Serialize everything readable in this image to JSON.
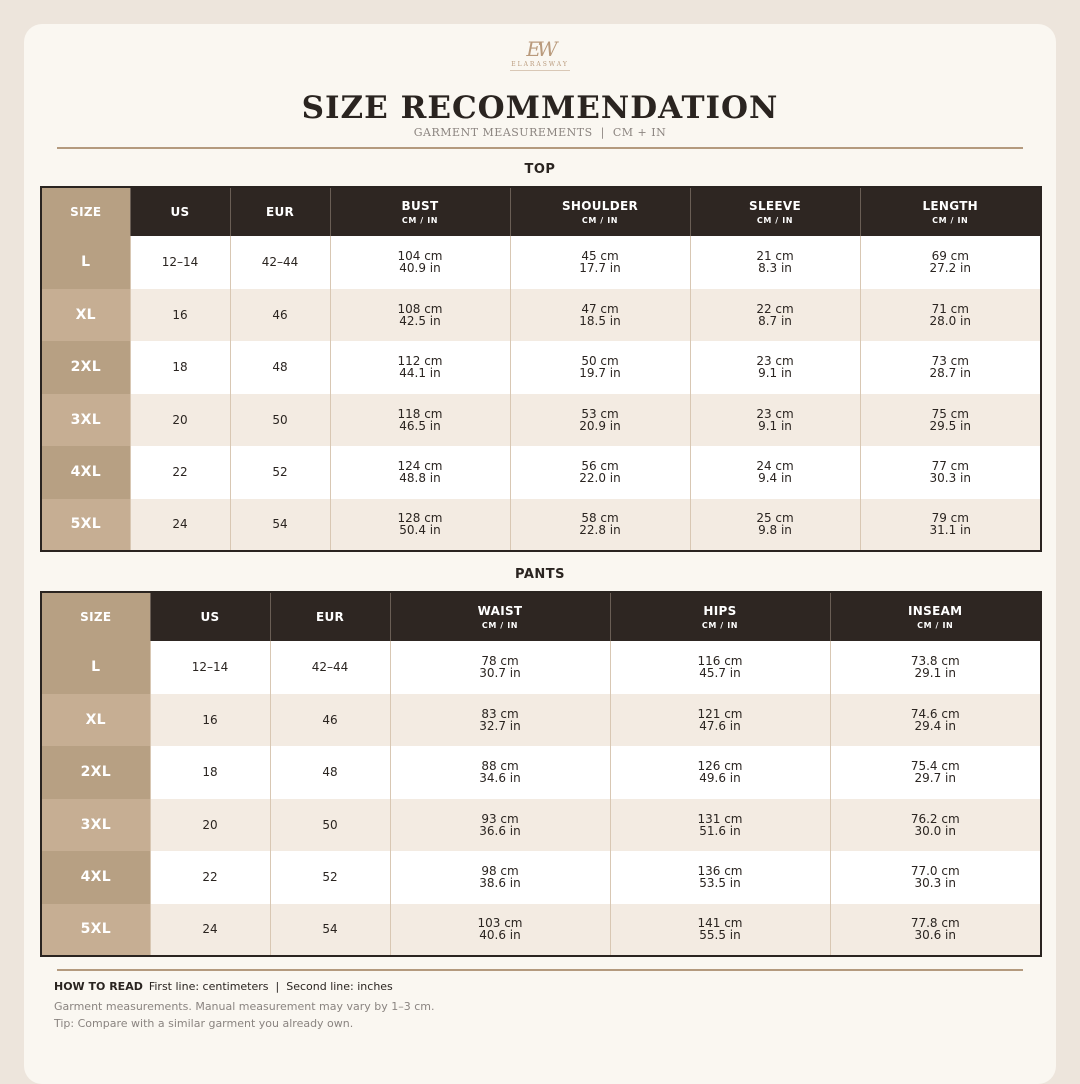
{
  "brand": {
    "mark": "EW",
    "name": "ELARASWAY"
  },
  "title": "SIZE RECOMMENDATION",
  "subtitle": "GARMENT MEASUREMENTS  |  CM + IN",
  "top": {
    "label": "TOP",
    "headers": {
      "size": "SIZE",
      "us": "US",
      "eur": "EUR",
      "bust": "BUST",
      "shoulder": "SHOULDER",
      "sleeve": "SLEEVE",
      "length": "LENGTH",
      "unit": "CM / IN"
    },
    "rows": [
      {
        "size": "L",
        "us": "12–14",
        "eur": "42–44",
        "bust_cm": "104 cm",
        "bust_in": "40.9 in",
        "shoulder_cm": "45 cm",
        "shoulder_in": "17.7 in",
        "sleeve_cm": "21 cm",
        "sleeve_in": "8.3 in",
        "length_cm": "69 cm",
        "length_in": "27.2 in"
      },
      {
        "size": "XL",
        "us": "16",
        "eur": "46",
        "bust_cm": "108 cm",
        "bust_in": "42.5 in",
        "shoulder_cm": "47 cm",
        "shoulder_in": "18.5 in",
        "sleeve_cm": "22 cm",
        "sleeve_in": "8.7 in",
        "length_cm": "71 cm",
        "length_in": "28.0 in"
      },
      {
        "size": "2XL",
        "us": "18",
        "eur": "48",
        "bust_cm": "112 cm",
        "bust_in": "44.1 in",
        "shoulder_cm": "50 cm",
        "shoulder_in": "19.7 in",
        "sleeve_cm": "23 cm",
        "sleeve_in": "9.1 in",
        "length_cm": "73 cm",
        "length_in": "28.7 in"
      },
      {
        "size": "3XL",
        "us": "20",
        "eur": "50",
        "bust_cm": "118 cm",
        "bust_in": "46.5 in",
        "shoulder_cm": "53 cm",
        "shoulder_in": "20.9 in",
        "sleeve_cm": "23 cm",
        "sleeve_in": "9.1 in",
        "length_cm": "75 cm",
        "length_in": "29.5 in"
      },
      {
        "size": "4XL",
        "us": "22",
        "eur": "52",
        "bust_cm": "124 cm",
        "bust_in": "48.8 in",
        "shoulder_cm": "56 cm",
        "shoulder_in": "22.0 in",
        "sleeve_cm": "24 cm",
        "sleeve_in": "9.4 in",
        "length_cm": "77 cm",
        "length_in": "30.3 in"
      },
      {
        "size": "5XL",
        "us": "24",
        "eur": "54",
        "bust_cm": "128 cm",
        "bust_in": "50.4 in",
        "shoulder_cm": "58 cm",
        "shoulder_in": "22.8 in",
        "sleeve_cm": "25 cm",
        "sleeve_in": "9.8 in",
        "length_cm": "79 cm",
        "length_in": "31.1 in"
      }
    ]
  },
  "pants": {
    "label": "PANTS",
    "headers": {
      "size": "SIZE",
      "us": "US",
      "eur": "EUR",
      "waist": "WAIST",
      "hips": "HIPS",
      "inseam": "INSEAM",
      "unit": "CM / IN"
    },
    "rows": [
      {
        "size": "L",
        "us": "12–14",
        "eur": "42–44",
        "waist_cm": "78 cm",
        "waist_in": "30.7 in",
        "hips_cm": "116 cm",
        "hips_in": "45.7 in",
        "inseam_cm": "73.8 cm",
        "inseam_in": "29.1 in"
      },
      {
        "size": "XL",
        "us": "16",
        "eur": "46",
        "waist_cm": "83 cm",
        "waist_in": "32.7 in",
        "hips_cm": "121 cm",
        "hips_in": "47.6 in",
        "inseam_cm": "74.6 cm",
        "inseam_in": "29.4 in"
      },
      {
        "size": "2XL",
        "us": "18",
        "eur": "48",
        "waist_cm": "88 cm",
        "waist_in": "34.6 in",
        "hips_cm": "126 cm",
        "hips_in": "49.6 in",
        "inseam_cm": "75.4 cm",
        "inseam_in": "29.7 in"
      },
      {
        "size": "3XL",
        "us": "20",
        "eur": "50",
        "waist_cm": "93 cm",
        "waist_in": "36.6 in",
        "hips_cm": "131 cm",
        "hips_in": "51.6 in",
        "inseam_cm": "76.2 cm",
        "inseam_in": "30.0 in"
      },
      {
        "size": "4XL",
        "us": "22",
        "eur": "52",
        "waist_cm": "98 cm",
        "waist_in": "38.6 in",
        "hips_cm": "136 cm",
        "hips_in": "53.5 in",
        "inseam_cm": "77.0 cm",
        "inseam_in": "30.3 in"
      },
      {
        "size": "5XL",
        "us": "24",
        "eur": "54",
        "waist_cm": "103 cm",
        "waist_in": "40.6 in",
        "hips_cm": "141 cm",
        "hips_in": "55.5 in",
        "inseam_cm": "77.8 cm",
        "inseam_in": "30.6 in"
      }
    ]
  },
  "footer": {
    "howto_label": "HOW TO READ",
    "howto_text": "First line: centimeters  |  Second line: inches",
    "note1": "Garment measurements. Manual measurement may vary by 1–3 cm.",
    "note2": "Tip: Compare with a similar garment you already own."
  },
  "colors": {
    "background": "#ede5dc",
    "card": "#faf7f1",
    "header_dark": "#2e2622",
    "size_tan": "#b7a083",
    "size_tan_alt": "#c6ae93",
    "row_alt": "#f3ebe2",
    "accent_rule": "#b49a7e"
  }
}
